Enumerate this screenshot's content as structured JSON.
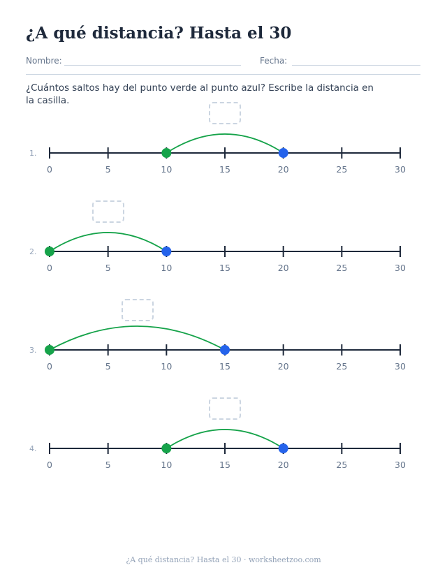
{
  "header": {
    "title": "¿A qué distancia? Hasta el 30",
    "name_label": "Nombre:",
    "date_label": "Fecha:"
  },
  "instructions": "¿Cuántos saltos hay del punto verde al punto azul? Escribe la distancia en la casilla.",
  "number_line": {
    "min": 0,
    "max": 30,
    "tick_labels": [
      "0",
      "5",
      "10",
      "15",
      "20",
      "25",
      "30"
    ]
  },
  "colors": {
    "start_point": "#16a34a",
    "end_point": "#2563eb",
    "jump_arc": "#16a34a",
    "line": "#1e293b"
  },
  "problems": [
    {
      "number": "1.",
      "start": 10,
      "end": 20
    },
    {
      "number": "2.",
      "start": 0,
      "end": 10
    },
    {
      "number": "3.",
      "start": 0,
      "end": 15
    },
    {
      "number": "4.",
      "start": 10,
      "end": 20
    }
  ],
  "footer": "¿A qué distancia? Hasta el 30 · worksheetzoo.com"
}
